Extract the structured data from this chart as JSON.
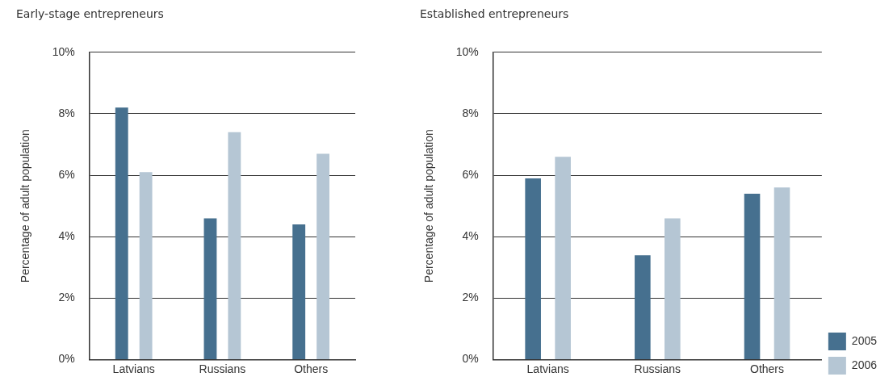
{
  "chart_data": [
    {
      "type": "bar",
      "title": "Early-stage entrepreneurs",
      "ylabel": "Percentage of adult population",
      "categories": [
        "Latvians",
        "Russians",
        "Others"
      ],
      "series": [
        {
          "color": "#46708f",
          "values": [
            8.2,
            4.6,
            4.4
          ]
        },
        {
          "color": "#b5c6d4",
          "values": [
            6.1,
            7.4,
            6.7
          ]
        }
      ],
      "ylim": [
        0,
        10
      ],
      "yticks": [
        {
          "value": 0,
          "label": "0%"
        },
        {
          "value": 2,
          "label": "2%"
        },
        {
          "value": 4,
          "label": "4%"
        },
        {
          "value": 6,
          "label": "6%"
        },
        {
          "value": 8,
          "label": "8%"
        },
        {
          "value": 10,
          "label": "10%"
        }
      ],
      "grid": "y",
      "legend": false
    },
    {
      "type": "bar",
      "title": "Established entrepreneurs",
      "ylabel": "Percentage of adult population",
      "categories": [
        "Latvians",
        "Russians",
        "Others"
      ],
      "series": [
        {
          "name": "2005",
          "color": "#46708f",
          "values": [
            5.9,
            3.4,
            5.4
          ]
        },
        {
          "name": "2006",
          "color": "#b5c6d4",
          "values": [
            6.6,
            4.6,
            5.6
          ]
        }
      ],
      "ylim": [
        0,
        10
      ],
      "yticks": [
        {
          "value": 0,
          "label": "0%"
        },
        {
          "value": 2,
          "label": "2%"
        },
        {
          "value": 4,
          "label": "4%"
        },
        {
          "value": 6,
          "label": "6%"
        },
        {
          "value": 8,
          "label": "8%"
        },
        {
          "value": 10,
          "label": "10%"
        }
      ],
      "grid": "y",
      "legend": "bottom right"
    }
  ]
}
